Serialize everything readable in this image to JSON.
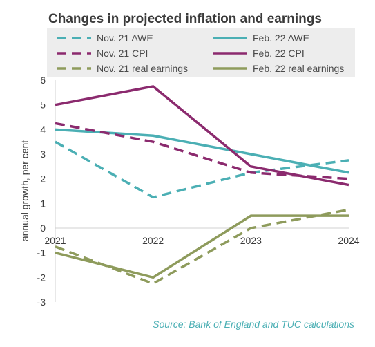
{
  "chart_data": {
    "type": "line",
    "title": "Changes in projected inflation and earnings",
    "ylabel": "annual growth, per cent",
    "xlabel": "",
    "source": "Source: Bank of England and TUC calculations",
    "categories": [
      "2021",
      "2022",
      "2023",
      "2024"
    ],
    "ylim": [
      -3,
      6
    ],
    "yticks": [
      -3,
      -2,
      -1,
      0,
      1,
      2,
      3,
      4,
      5,
      6
    ],
    "grid": false,
    "legend_position": "top",
    "series": [
      {
        "name": "Nov. 21 AWE",
        "values": [
          3.5,
          1.25,
          2.25,
          2.75
        ],
        "color": "#4bafb4",
        "dashed": true
      },
      {
        "name": "Feb. 22 AWE",
        "values": [
          4.0,
          3.75,
          3.0,
          2.25
        ],
        "color": "#4bafb4",
        "dashed": false
      },
      {
        "name": "Nov. 21 CPI",
        "values": [
          4.25,
          3.5,
          2.25,
          2.0
        ],
        "color": "#8b2a6e",
        "dashed": true
      },
      {
        "name": "Feb. 22 CPI",
        "values": [
          5.0,
          5.75,
          2.5,
          1.75
        ],
        "color": "#8b2a6e",
        "dashed": false
      },
      {
        "name": "Nov. 21 real earnings",
        "values": [
          -0.75,
          -2.25,
          0.0,
          0.75
        ],
        "color": "#8e9b5c",
        "dashed": true
      },
      {
        "name": "Feb. 22 real earnings",
        "values": [
          -1.0,
          -2.0,
          0.5,
          0.5
        ],
        "color": "#8e9b5c",
        "dashed": false
      }
    ]
  }
}
